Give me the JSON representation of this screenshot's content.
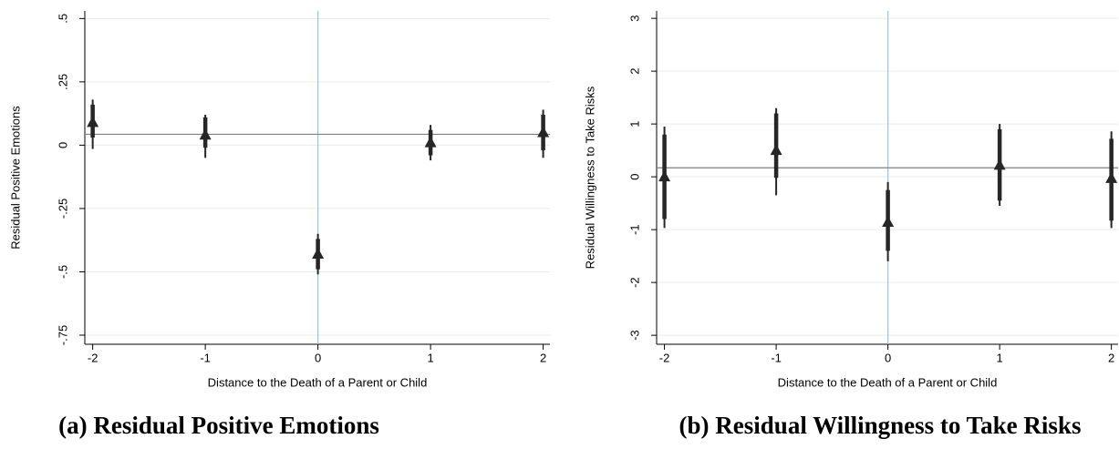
{
  "chart_data": [
    {
      "type": "errorbar",
      "caption": "(a) Residual Positive Emotions",
      "x_label": "Distance to the Death of a Parent or Child",
      "y_label": "Residual Positive Emotions",
      "x": [
        -2,
        -1,
        0,
        1,
        2
      ],
      "values": [
        0.09,
        0.04,
        -0.43,
        0.01,
        0.05
      ],
      "thick_low": [
        0.03,
        -0.01,
        -0.49,
        -0.04,
        -0.02
      ],
      "thick_high": [
        0.16,
        0.11,
        -0.37,
        0.06,
        0.12
      ],
      "thin_low": [
        -0.015,
        -0.05,
        -0.51,
        -0.06,
        -0.05
      ],
      "thin_high": [
        0.18,
        0.12,
        -0.35,
        0.08,
        0.14
      ],
      "reference_line": 0.043,
      "vertical_line": 0,
      "color": "#262626",
      "reference_color": "#7f7f7f",
      "vertical_color": "#8fc7ea",
      "xlim": [
        -2.07,
        2.06
      ],
      "ylim": [
        -0.786,
        0.53
      ],
      "xticks": [
        -2,
        -1,
        0,
        1,
        2
      ],
      "yticks": [
        {
          "value": 0.5,
          "label": ".5"
        },
        {
          "value": 0.25,
          "label": ".25"
        },
        0,
        {
          "value": -0.25,
          "label": "-.25"
        },
        {
          "value": -0.5,
          "label": "-.5"
        },
        {
          "value": -0.75,
          "label": "-.75"
        }
      ],
      "grid": true
    },
    {
      "type": "errorbar",
      "caption": "(b) Residual Willingness to Take Risks",
      "x_label": "Distance to the Death of a Parent or Child",
      "y_label": "Residual Willingness to Take Risks",
      "x": [
        -2,
        -1,
        0,
        1,
        2
      ],
      "values": [
        0.0,
        0.5,
        -0.86,
        0.22,
        -0.03
      ],
      "thick_low": [
        -0.8,
        -0.02,
        -1.4,
        -0.45,
        -0.83
      ],
      "thick_high": [
        0.8,
        1.2,
        -0.25,
        0.9,
        0.72
      ],
      "thin_low": [
        -0.97,
        -0.35,
        -1.6,
        -0.55,
        -0.97
      ],
      "thin_high": [
        0.95,
        1.3,
        -0.1,
        1.0,
        0.86
      ],
      "reference_line": 0.17,
      "vertical_line": 0,
      "color": "#262626",
      "reference_color": "#7f7f7f",
      "vertical_color": "#8fc7ea",
      "xlim": [
        -2.07,
        2.06
      ],
      "ylim": [
        -3.17,
        3.14
      ],
      "xticks": [
        -2,
        -1,
        0,
        1,
        2
      ],
      "yticks": [
        3,
        2,
        1,
        0,
        -1,
        -2,
        -3
      ],
      "grid": true
    }
  ]
}
